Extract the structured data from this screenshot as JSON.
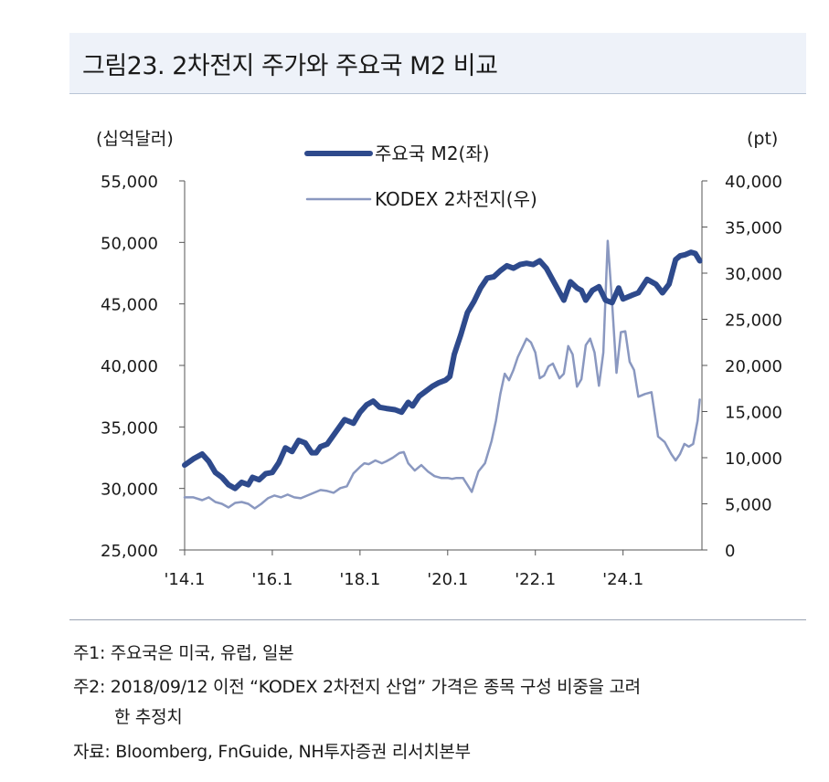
{
  "title": "그림23. 2차전지 주가와 주요국 M2 비교",
  "notes": {
    "note1": "주1: 주요국은 미국, 유럽, 일본",
    "note2_line1": "주2: 2018/09/12 이전 “KODEX 2차전지 산업” 가격은 종목 구성 비중을 고려",
    "note2_line2": "한 추정치",
    "source": "자료: Bloomberg, FnGuide, NH투자증권 리서치본부"
  },
  "colors": {
    "m2": "#2e4a8c",
    "kodex": "#8a98c0",
    "title_bg": "#eef2f9"
  },
  "chart_data": {
    "type": "line",
    "left_unit": "(십억달러)",
    "right_unit": "(pt)",
    "x_ticks": [
      "'14.1",
      "'16.1",
      "'18.1",
      "'20.1",
      "'22.1",
      "'24.1"
    ],
    "x_tick_values": [
      2014.0,
      2016.0,
      2018.0,
      2020.0,
      2022.0,
      2024.0
    ],
    "xlim": [
      2014.0,
      2025.8
    ],
    "left_ylim": [
      25000,
      55000
    ],
    "left_ticks": [
      "25,000",
      "30,000",
      "35,000",
      "40,000",
      "45,000",
      "50,000",
      "55,000"
    ],
    "left_tick_values": [
      25000,
      30000,
      35000,
      40000,
      45000,
      50000,
      55000
    ],
    "right_ylim": [
      0,
      40000
    ],
    "right_ticks": [
      "0",
      "5,000",
      "10,000",
      "15,000",
      "20,000",
      "25,000",
      "30,000",
      "35,000",
      "40,000"
    ],
    "right_tick_values": [
      0,
      5000,
      10000,
      15000,
      20000,
      25000,
      30000,
      35000,
      40000
    ],
    "legend_placement": "top-center",
    "series": [
      {
        "name": "주요국 M2(좌)",
        "axis": "left",
        "x": [
          2014.0,
          2014.2,
          2014.4,
          2014.55,
          2014.7,
          2014.85,
          2015.0,
          2015.15,
          2015.3,
          2015.45,
          2015.55,
          2015.7,
          2015.85,
          2016.0,
          2016.15,
          2016.3,
          2016.45,
          2016.6,
          2016.75,
          2016.9,
          2017.0,
          2017.1,
          2017.25,
          2017.45,
          2017.65,
          2017.85,
          2018.0,
          2018.15,
          2018.3,
          2018.45,
          2018.6,
          2018.8,
          2018.95,
          2019.1,
          2019.2,
          2019.35,
          2019.5,
          2019.65,
          2019.8,
          2019.95,
          2020.05,
          2020.15,
          2020.3,
          2020.45,
          2020.6,
          2020.75,
          2020.9,
          2021.05,
          2021.2,
          2021.35,
          2021.5,
          2021.65,
          2021.8,
          2021.95,
          2022.1,
          2022.25,
          2022.45,
          2022.65,
          2022.8,
          2022.95,
          2023.05,
          2023.15,
          2023.3,
          2023.45,
          2023.6,
          2023.75,
          2023.9,
          2024.0,
          2024.2,
          2024.35,
          2024.55,
          2024.75,
          2024.9,
          2025.05,
          2025.2,
          2025.3,
          2025.42,
          2025.55,
          2025.65,
          2025.75
        ],
        "values": [
          31900,
          32400,
          32800,
          32200,
          31300,
          30900,
          30300,
          30000,
          30500,
          30300,
          30900,
          30700,
          31200,
          31300,
          32100,
          33300,
          33000,
          33900,
          33700,
          32900,
          32900,
          33400,
          33600,
          34600,
          35600,
          35300,
          36200,
          36800,
          37100,
          36600,
          36500,
          36400,
          36200,
          37000,
          36700,
          37500,
          37900,
          38300,
          38600,
          38800,
          39100,
          40900,
          42500,
          44300,
          45200,
          46300,
          47100,
          47200,
          47700,
          48100,
          47900,
          48200,
          48300,
          48200,
          48500,
          47900,
          46600,
          45300,
          46800,
          46300,
          46100,
          45300,
          46100,
          46400,
          45300,
          45100,
          46300,
          45400,
          45700,
          45900,
          47000,
          46600,
          45900,
          46600,
          48600,
          48900,
          49000,
          49200,
          49100,
          48500
        ]
      },
      {
        "name": "KODEX 2차전지(우)",
        "axis": "right",
        "x": [
          2014.0,
          2014.2,
          2014.4,
          2014.55,
          2014.7,
          2014.85,
          2015.0,
          2015.15,
          2015.3,
          2015.45,
          2015.6,
          2015.75,
          2015.9,
          2016.05,
          2016.2,
          2016.35,
          2016.5,
          2016.65,
          2016.8,
          2016.95,
          2017.1,
          2017.25,
          2017.4,
          2017.55,
          2017.7,
          2017.85,
          2018.0,
          2018.1,
          2018.2,
          2018.35,
          2018.5,
          2018.6,
          2018.75,
          2018.9,
          2019.0,
          2019.1,
          2019.25,
          2019.4,
          2019.55,
          2019.7,
          2019.85,
          2020.0,
          2020.1,
          2020.2,
          2020.35,
          2020.55,
          2020.7,
          2020.85,
          2021.0,
          2021.1,
          2021.2,
          2021.3,
          2021.4,
          2021.5,
          2021.6,
          2021.7,
          2021.8,
          2021.9,
          2022.0,
          2022.1,
          2022.2,
          2022.3,
          2022.4,
          2022.55,
          2022.65,
          2022.75,
          2022.85,
          2022.95,
          2023.05,
          2023.15,
          2023.25,
          2023.35,
          2023.45,
          2023.55,
          2023.65,
          2023.75,
          2023.85,
          2023.95,
          2024.05,
          2024.15,
          2024.25,
          2024.35,
          2024.5,
          2024.65,
          2024.8,
          2024.95,
          2025.1,
          2025.2,
          2025.3,
          2025.4,
          2025.5,
          2025.6,
          2025.7,
          2025.75
        ],
        "values": [
          5700,
          5700,
          5400,
          5700,
          5200,
          5000,
          4600,
          5100,
          5200,
          5000,
          4500,
          5000,
          5600,
          5900,
          5700,
          6000,
          5700,
          5600,
          5900,
          6200,
          6500,
          6400,
          6200,
          6700,
          6900,
          8300,
          9000,
          9400,
          9300,
          9700,
          9400,
          9600,
          10000,
          10500,
          10600,
          9400,
          8600,
          9200,
          8500,
          8000,
          7800,
          7800,
          7700,
          7800,
          7800,
          6300,
          8500,
          9400,
          11800,
          14000,
          16900,
          19100,
          18400,
          19500,
          20900,
          21900,
          22900,
          22500,
          21400,
          18600,
          18900,
          19900,
          20200,
          18600,
          19100,
          22100,
          21200,
          17700,
          18500,
          22200,
          22900,
          21400,
          17800,
          21400,
          33500,
          26800,
          19200,
          23600,
          23700,
          20400,
          19500,
          16600,
          16900,
          17100,
          12300,
          11700,
          10400,
          9700,
          10400,
          11500,
          11200,
          11500,
          14000,
          16300
        ]
      }
    ]
  }
}
